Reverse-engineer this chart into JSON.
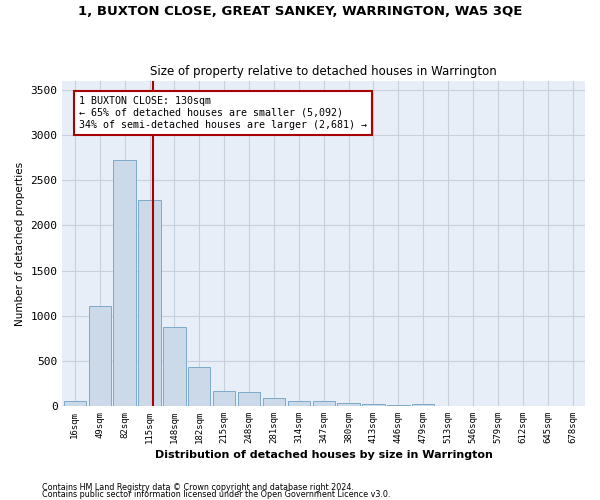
{
  "title": "1, BUXTON CLOSE, GREAT SANKEY, WARRINGTON, WA5 3QE",
  "subtitle": "Size of property relative to detached houses in Warrington",
  "xlabel": "Distribution of detached houses by size in Warrington",
  "ylabel": "Number of detached properties",
  "bar_color": "#ccd9e8",
  "bar_edge_color": "#7baac8",
  "grid_color": "#c8d0de",
  "background_color": "#e8eef8",
  "annotation_box_color": "#aa0000",
  "vline_color": "#aa0000",
  "annotation_text": "1 BUXTON CLOSE: 130sqm\n← 65% of detached houses are smaller (5,092)\n34% of semi-detached houses are larger (2,681) →",
  "footnote1": "Contains HM Land Registry data © Crown copyright and database right 2024.",
  "footnote2": "Contains public sector information licensed under the Open Government Licence v3.0.",
  "bin_labels": [
    "16sqm",
    "49sqm",
    "82sqm",
    "115sqm",
    "148sqm",
    "182sqm",
    "215sqm",
    "248sqm",
    "281sqm",
    "314sqm",
    "347sqm",
    "380sqm",
    "413sqm",
    "446sqm",
    "479sqm",
    "513sqm",
    "546sqm",
    "579sqm",
    "612sqm",
    "645sqm",
    "678sqm"
  ],
  "bar_values": [
    50,
    1110,
    2720,
    2280,
    870,
    430,
    170,
    160,
    90,
    60,
    50,
    30,
    25,
    5,
    20,
    0,
    0,
    0,
    0,
    0,
    0
  ],
  "vline_x": 3.13,
  "ylim": [
    0,
    3600
  ],
  "yticks": [
    0,
    500,
    1000,
    1500,
    2000,
    2500,
    3000,
    3500
  ]
}
